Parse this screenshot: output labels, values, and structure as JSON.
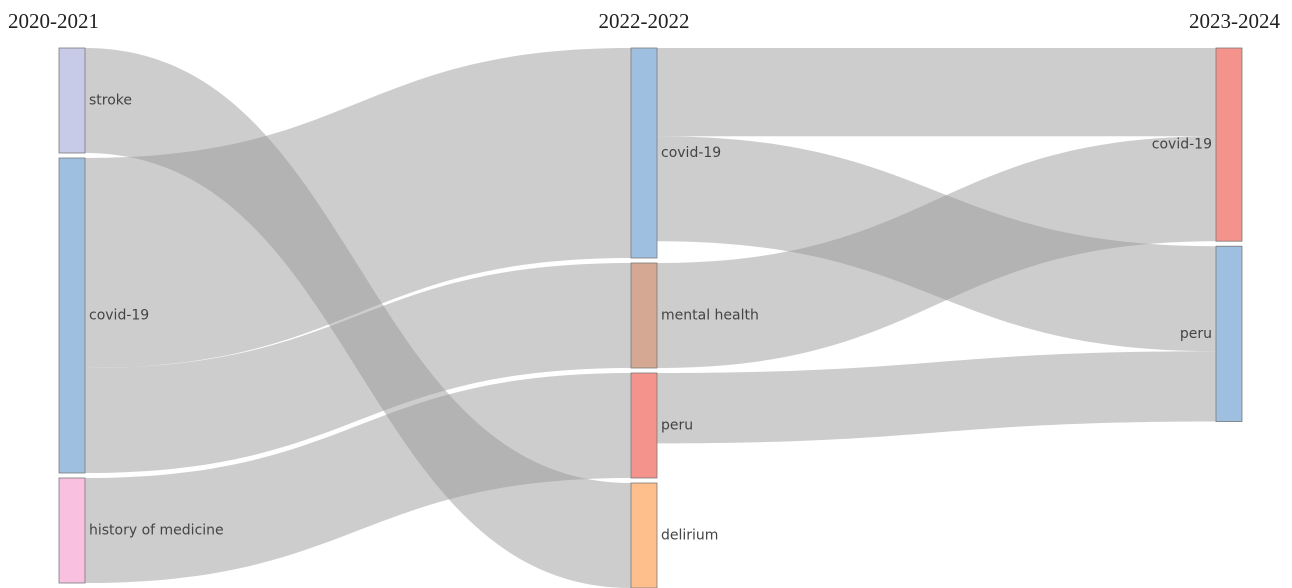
{
  "chart_data": {
    "type": "sankey",
    "columns": [
      "2020-2021",
      "2022-2022",
      "2023-2024"
    ],
    "nodes": [
      {
        "label": "stroke",
        "column": 0,
        "color": "#c7cbe8"
      },
      {
        "label": "covid-19",
        "column": 0,
        "color": "#9ebfe0"
      },
      {
        "label": "history of medicine",
        "column": 0,
        "color": "#f9c0e0"
      },
      {
        "label": "covid-19",
        "column": 1,
        "color": "#9ebfe0"
      },
      {
        "label": "mental health",
        "column": 1,
        "color": "#d4a892"
      },
      {
        "label": "peru",
        "column": 1,
        "color": "#f4928c"
      },
      {
        "label": "delirium",
        "column": 1,
        "color": "#ffbf8c"
      },
      {
        "label": "covid-19",
        "column": 2,
        "color": "#f4928c"
      },
      {
        "label": "peru",
        "column": 2,
        "color": "#9ebfe0"
      }
    ],
    "links": [
      {
        "source": 0,
        "target": 6,
        "value": 1
      },
      {
        "source": 1,
        "target": 3,
        "value": 2
      },
      {
        "source": 1,
        "target": 4,
        "value": 1
      },
      {
        "source": 2,
        "target": 5,
        "value": 1
      },
      {
        "source": 3,
        "target": 7,
        "value": 0.84
      },
      {
        "source": 3,
        "target": 8,
        "value": 1
      },
      {
        "source": 4,
        "target": 7,
        "value": 1
      },
      {
        "source": 5,
        "target": 8,
        "value": 0.67
      }
    ],
    "link_color": "rgba(150,150,150,0.48)"
  }
}
